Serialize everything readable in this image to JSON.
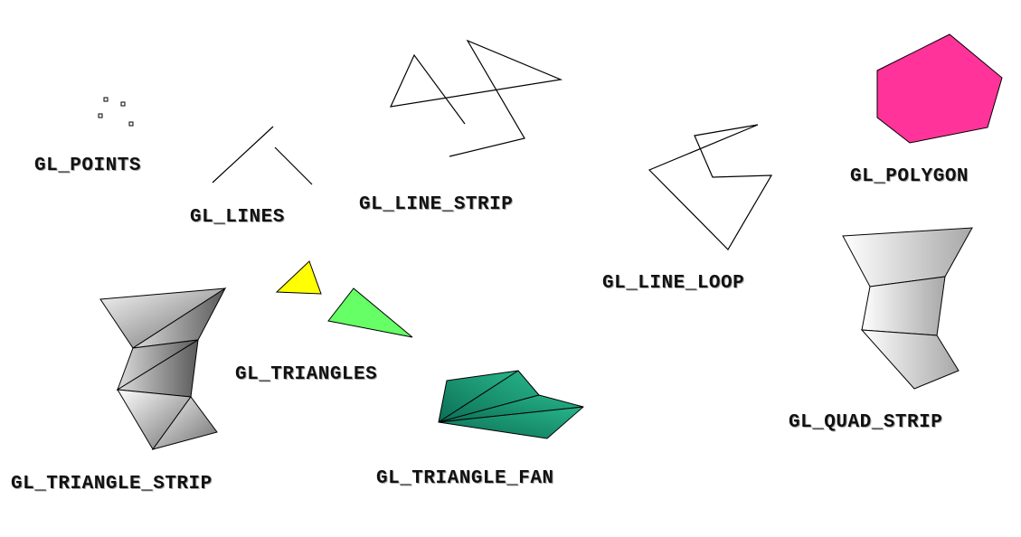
{
  "labels": {
    "points": "GL_POINTS",
    "lines": "GL_LINES",
    "line_strip": "GL_LINE_STRIP",
    "line_loop": "GL_LINE_LOOP",
    "polygon": "GL_POLYGON",
    "triangles": "GL_TRIANGLES",
    "triangle_strip": "GL_TRIANGLE_STRIP",
    "triangle_fan": "GL_TRIANGLE_FAN",
    "quad_strip": "GL_QUAD_STRIP"
  },
  "colors": {
    "polygon_fill": "#ff3399",
    "triangle_yellow": "#ffff00",
    "triangle_green": "#66ff66",
    "fan_fill": "#119977",
    "strip_gray": "#999999",
    "quad_gray": "#dddddd",
    "stroke": "#000000"
  }
}
